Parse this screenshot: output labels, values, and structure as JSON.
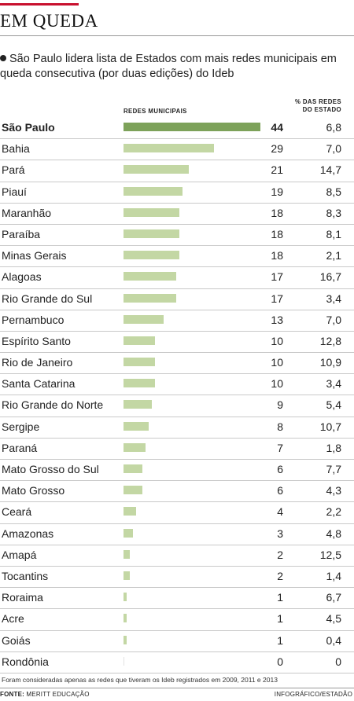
{
  "header": {
    "title": "EM QUEDA",
    "subtitle": "São Paulo lidera lista de Estados com mais redes municipais em queda consecutiva (por duas edições) do Ideb"
  },
  "columns": {
    "redes": "REDES MUNICIPAIS",
    "pct_line1": "% DAS REDES",
    "pct_line2": "DO ESTADO"
  },
  "colors": {
    "highlight_bar": "#7da25a",
    "bar": "#c3d7a4",
    "accent_rule": "#c8102e"
  },
  "chart_data": {
    "type": "bar",
    "orientation": "horizontal",
    "categories": [
      "São Paulo",
      "Bahia",
      "Pará",
      "Piauí",
      "Maranhão",
      "Paraíba",
      "Minas Gerais",
      "Alagoas",
      "Rio Grande do Sul",
      "Pernambuco",
      "Espírito Santo",
      "Rio de Janeiro",
      "Santa Catarina",
      "Rio Grande do Norte",
      "Sergipe",
      "Paraná",
      "Mato Grosso do Sul",
      "Mato Grosso",
      "Ceará",
      "Amazonas",
      "Amapá",
      "Tocantins",
      "Roraima",
      "Acre",
      "Goiás",
      "Rondônia"
    ],
    "series": [
      {
        "name": "REDES MUNICIPAIS",
        "values": [
          44,
          29,
          21,
          19,
          18,
          18,
          18,
          17,
          17,
          13,
          10,
          10,
          10,
          9,
          8,
          7,
          6,
          6,
          4,
          3,
          2,
          2,
          1,
          1,
          1,
          0
        ]
      },
      {
        "name": "% DAS REDES DO ESTADO",
        "values": [
          "6,8",
          "7,0",
          "14,7",
          "8,5",
          "8,3",
          "8,1",
          "2,1",
          "16,7",
          "3,4",
          "7,0",
          "12,8",
          "10,9",
          "3,4",
          "5,4",
          "10,7",
          "1,8",
          "7,7",
          "4,3",
          "2,2",
          "4,8",
          "12,5",
          "1,4",
          "6,7",
          "4,5",
          "0,4",
          "0"
        ]
      }
    ],
    "highlight_index": 0,
    "xlim": [
      0,
      44
    ]
  },
  "footer": {
    "note": "Foram consideradas apenas as redes que tiveram os Ideb registrados em 2009, 2011 e 2013",
    "source_label": "FONTE:",
    "source": "MERITT EDUCAÇÃO",
    "credit": "INFOGRÁFICO/ESTADÃO"
  }
}
